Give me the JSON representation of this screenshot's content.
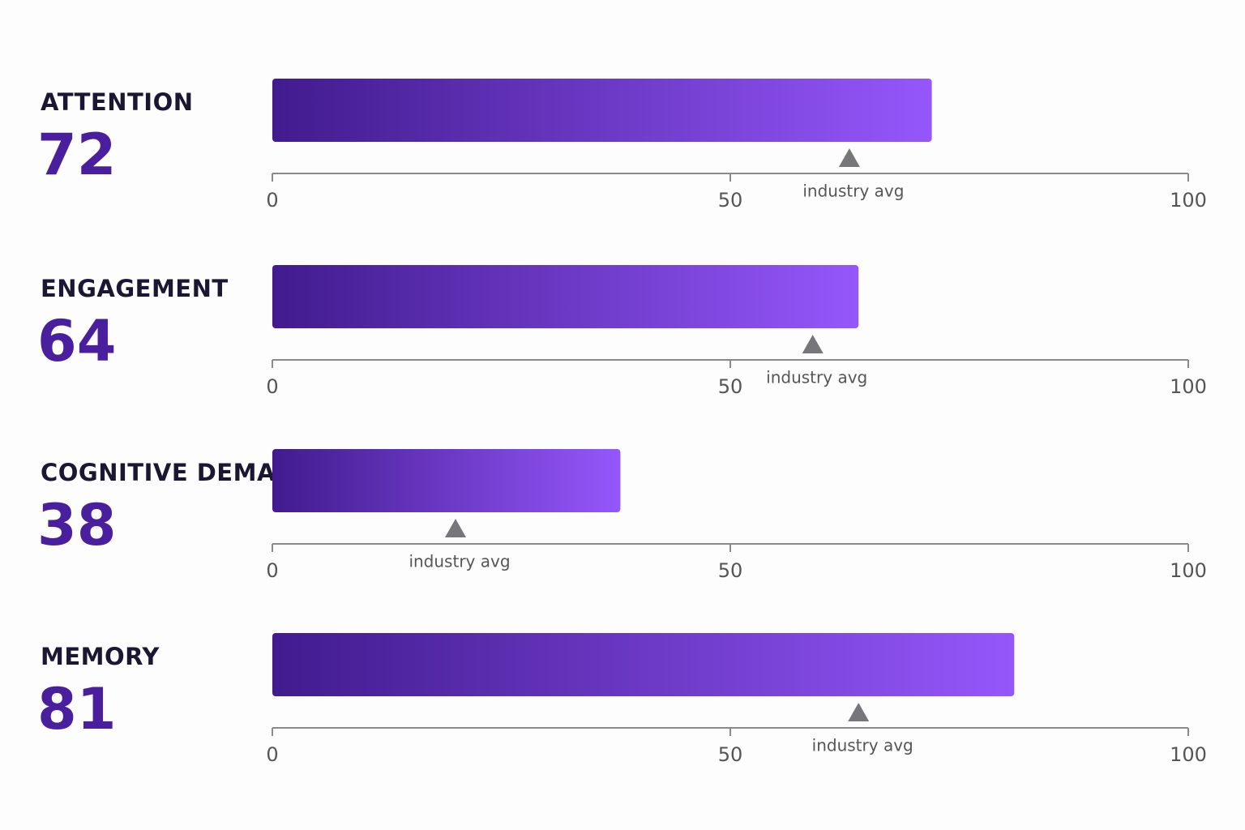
{
  "chart_data": [
    {
      "type": "bar",
      "title": "ATTENTION",
      "values": [
        72
      ],
      "industry_avg": 63,
      "marker_label": "industry avg",
      "xlim": [
        0,
        100
      ],
      "xticks": [
        0,
        50,
        100
      ],
      "colors": [
        "#411b8e",
        "#9557fb"
      ],
      "marker_color": "#77767b"
    },
    {
      "type": "bar",
      "title": "ENGAGEMENT",
      "values": [
        64
      ],
      "industry_avg": 59,
      "marker_label": "industry avg",
      "xlim": [
        0,
        100
      ],
      "xticks": [
        0,
        50,
        100
      ],
      "colors": [
        "#411b8e",
        "#9557fb"
      ],
      "marker_color": "#77767b"
    },
    {
      "type": "bar",
      "title": "COGNITIVE DEMAND",
      "values": [
        38
      ],
      "industry_avg": 20,
      "marker_label": "industry avg",
      "xlim": [
        0,
        100
      ],
      "xticks": [
        0,
        50,
        100
      ],
      "colors": [
        "#411b8e",
        "#9557fb"
      ],
      "marker_color": "#77767b"
    },
    {
      "type": "bar",
      "title": "MEMORY",
      "values": [
        81
      ],
      "industry_avg": 64,
      "marker_label": "industry avg",
      "xlim": [
        0,
        100
      ],
      "xticks": [
        0,
        50,
        100
      ],
      "colors": [
        "#411b8e",
        "#9557fb"
      ],
      "marker_color": "#77767b"
    }
  ]
}
